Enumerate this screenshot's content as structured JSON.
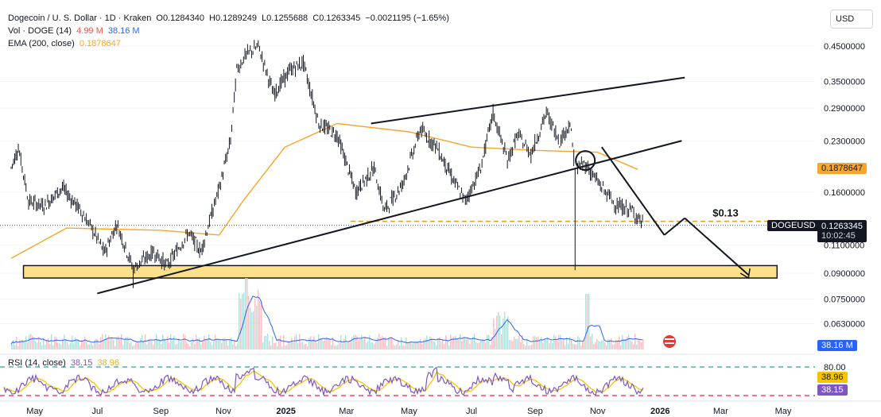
{
  "header": {
    "symbol": "Dogecoin / U. S. Dollar · 1D · Kraken",
    "open": "O0.1284340",
    "high": "H0.1289249",
    "low": "L0.1255688",
    "close": "C0.1263345",
    "change": "−0.0021195 (−1.65%)",
    "vol_label": "Vol · DOGE (14)",
    "vol_value": "4.99 M",
    "vol_ma": "38.16 M",
    "ema_label": "EMA (200, close)",
    "ema_value": "0.1878647"
  },
  "currency": "USD",
  "badges": {
    "ema": "0.1878647",
    "ticker": "DOGEUSD",
    "price": "0.1263345",
    "countdown": "10:02:45",
    "volume": "38.16 M",
    "rsi_signal": "38.96",
    "rsi_value": "38.15"
  },
  "annotations": {
    "target_label": "$0.13"
  },
  "rsi_header": {
    "label": "RSI (14, close)",
    "value": "38.15",
    "signal": "38.96"
  },
  "colors": {
    "candle": "#131722",
    "ema": "#f7a62b",
    "support_zone": "#fde08a",
    "support_border": "#131722",
    "volume": "#b2dfdb",
    "volume_down": "#f5c1c6",
    "volume_ma": "#2962ff",
    "rsi": "#7e57c2",
    "rsi_ma": "#f5c400",
    "rsi_upper_line": "#26a69a",
    "rsi_lower_line": "#ff1744",
    "ema_badge": "#f7a62b",
    "price_badge": "#131722",
    "vol_badge": "#2962ff",
    "rsi_badge": "#7e57c2"
  },
  "chart_data": {
    "type": "candlestick",
    "scale": "log",
    "y_axis_ticks": [
      "0.4500000",
      "0.3500000",
      "0.2900000",
      "0.2300000",
      "0.1600000",
      "0.1100000",
      "0.0900000",
      "0.0750000",
      "0.0630000"
    ],
    "y_axis_values": [
      0.45,
      0.35,
      0.29,
      0.23,
      0.16,
      0.11,
      0.09,
      0.075,
      0.063
    ],
    "x_axis_ticks": [
      "May",
      "Jul",
      "Sep",
      "Nov",
      "2025",
      "Mar",
      "May",
      "Jul",
      "Sep",
      "Nov",
      "2026",
      "Mar",
      "May"
    ],
    "price_path": [
      {
        "date": "2024-04-08",
        "close": 0.19
      },
      {
        "date": "2024-04-15",
        "close": 0.22
      },
      {
        "date": "2024-04-25",
        "close": 0.15
      },
      {
        "date": "2024-05-10",
        "close": 0.145
      },
      {
        "date": "2024-05-28",
        "close": 0.165
      },
      {
        "date": "2024-06-15",
        "close": 0.14
      },
      {
        "date": "2024-06-28",
        "close": 0.12
      },
      {
        "date": "2024-07-08",
        "close": 0.104
      },
      {
        "date": "2024-07-20",
        "close": 0.128
      },
      {
        "date": "2024-08-05",
        "close": 0.093
      },
      {
        "date": "2024-08-25",
        "close": 0.105
      },
      {
        "date": "2024-09-07",
        "close": 0.095
      },
      {
        "date": "2024-09-28",
        "close": 0.12
      },
      {
        "date": "2024-10-10",
        "close": 0.105
      },
      {
        "date": "2024-10-28",
        "close": 0.165
      },
      {
        "date": "2024-11-08",
        "close": 0.23
      },
      {
        "date": "2024-11-14",
        "close": 0.38
      },
      {
        "date": "2024-11-22",
        "close": 0.42
      },
      {
        "date": "2024-12-05",
        "close": 0.45
      },
      {
        "date": "2024-12-20",
        "close": 0.32
      },
      {
        "date": "2025-01-05",
        "close": 0.38
      },
      {
        "date": "2025-01-18",
        "close": 0.4
      },
      {
        "date": "2025-02-02",
        "close": 0.26
      },
      {
        "date": "2025-02-20",
        "close": 0.24
      },
      {
        "date": "2025-03-10",
        "close": 0.16
      },
      {
        "date": "2025-03-28",
        "close": 0.19
      },
      {
        "date": "2025-04-07",
        "close": 0.14
      },
      {
        "date": "2025-04-25",
        "close": 0.17
      },
      {
        "date": "2025-05-12",
        "close": 0.25
      },
      {
        "date": "2025-05-28",
        "close": 0.22
      },
      {
        "date": "2025-06-15",
        "close": 0.17
      },
      {
        "date": "2025-06-25",
        "close": 0.15
      },
      {
        "date": "2025-07-10",
        "close": 0.19
      },
      {
        "date": "2025-07-22",
        "close": 0.28
      },
      {
        "date": "2025-08-05",
        "close": 0.2
      },
      {
        "date": "2025-08-15",
        "close": 0.24
      },
      {
        "date": "2025-08-28",
        "close": 0.21
      },
      {
        "date": "2025-09-12",
        "close": 0.28
      },
      {
        "date": "2025-09-25",
        "close": 0.23
      },
      {
        "date": "2025-10-05",
        "close": 0.26
      },
      {
        "date": "2025-10-10",
        "close": 0.19
      },
      {
        "date": "2025-10-20",
        "close": 0.195
      },
      {
        "date": "2025-11-05",
        "close": 0.165
      },
      {
        "date": "2025-11-20",
        "close": 0.145
      },
      {
        "date": "2025-12-05",
        "close": 0.14
      },
      {
        "date": "2025-12-16",
        "close": 0.1263345
      }
    ],
    "ema_200": [
      {
        "date": "2024-04-08",
        "value": 0.1
      },
      {
        "date": "2024-06-01",
        "value": 0.124
      },
      {
        "date": "2024-09-01",
        "value": 0.122
      },
      {
        "date": "2024-10-28",
        "value": 0.118
      },
      {
        "date": "2024-11-20",
        "value": 0.15
      },
      {
        "date": "2024-12-31",
        "value": 0.22
      },
      {
        "date": "2025-02-20",
        "value": 0.26
      },
      {
        "date": "2025-05-01",
        "value": 0.245
      },
      {
        "date": "2025-07-01",
        "value": 0.22
      },
      {
        "date": "2025-09-01",
        "value": 0.215
      },
      {
        "date": "2025-11-01",
        "value": 0.212
      },
      {
        "date": "2025-12-10",
        "value": 0.1878647
      }
    ],
    "wicks": [
      {
        "date": "2024-08-05",
        "low": 0.081
      },
      {
        "date": "2025-10-10",
        "low": 0.092
      }
    ],
    "support_zone": {
      "low": 0.087,
      "high": 0.095,
      "from": "2024-04-20",
      "to": "2026-04-25"
    },
    "target_level": 0.13,
    "trendlines": [
      {
        "name": "channel-top",
        "from": {
          "date": "2025-03-25",
          "price": 0.26
        },
        "to": {
          "date": "2026-01-25",
          "price": 0.36
        }
      },
      {
        "name": "channel-bottom",
        "from": {
          "date": "2024-07-01",
          "price": 0.078
        },
        "to": {
          "date": "2026-01-22",
          "price": 0.23
        }
      },
      {
        "name": "projection-1",
        "from": {
          "date": "2025-11-05",
          "price": 0.22
        },
        "to": {
          "date": "2026-01-05",
          "price": 0.118
        }
      },
      {
        "name": "projection-2",
        "from": {
          "date": "2026-01-05",
          "price": 0.118
        },
        "to": {
          "date": "2026-01-25",
          "price": 0.133
        }
      },
      {
        "name": "projection-3",
        "from": {
          "date": "2026-01-25",
          "price": 0.133
        },
        "to": {
          "date": "2026-03-28",
          "price": 0.089
        }
      }
    ],
    "circle_marker": {
      "date": "2025-10-20",
      "price": 0.2
    },
    "volume": {
      "baseline_ma": 38.16,
      "unit": "M"
    },
    "rsi": {
      "upper": 80,
      "lower": 20,
      "value": 38.15,
      "signal": 38.96,
      "axis_ticks": [
        "80.00"
      ]
    }
  }
}
